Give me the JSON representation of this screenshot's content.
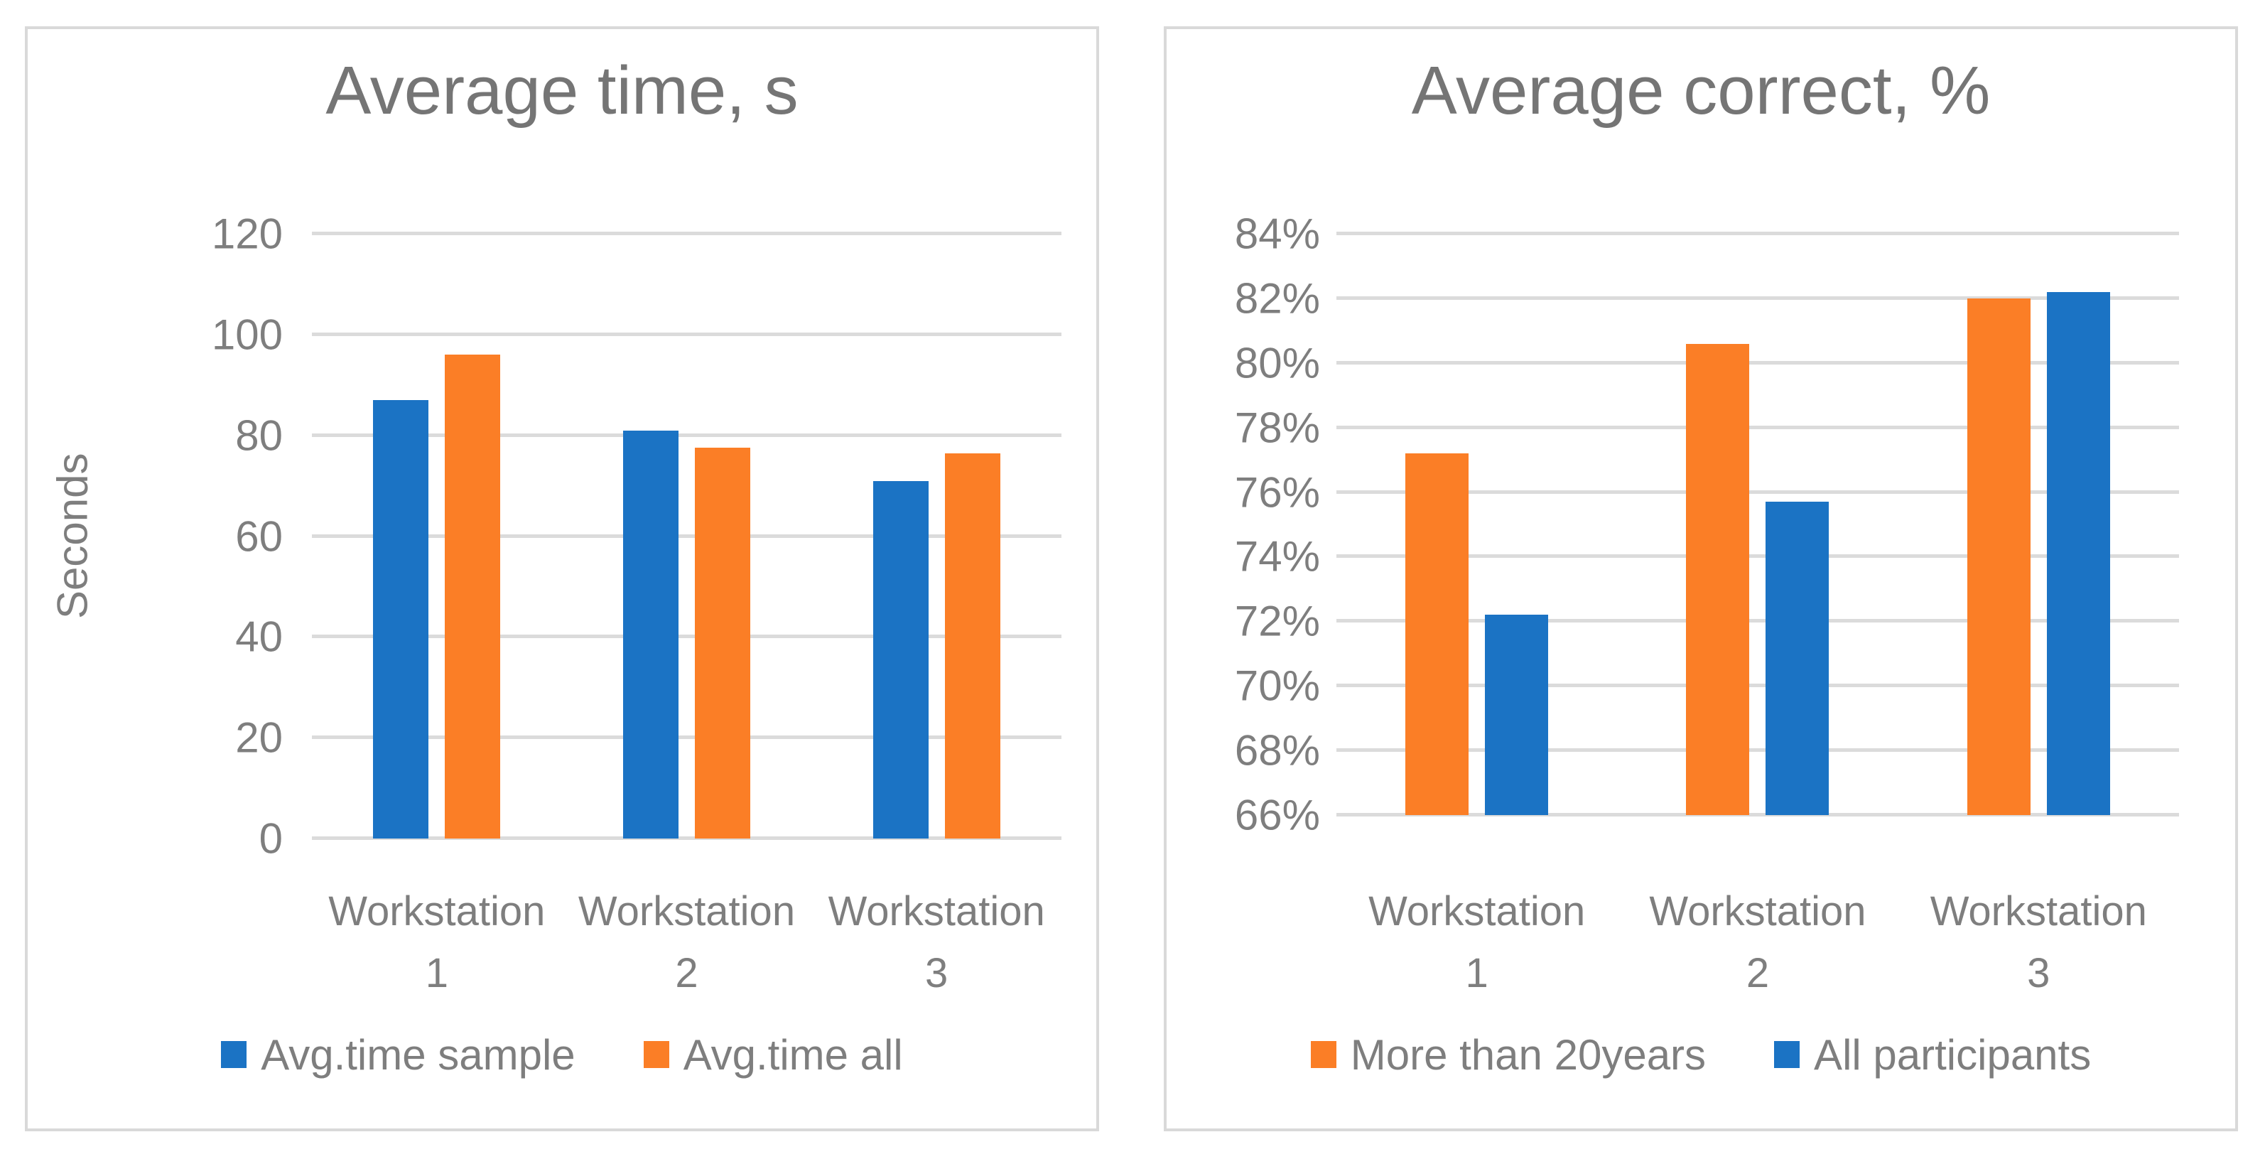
{
  "colors": {
    "series_blue": "#1b73c4",
    "series_orange": "#fb7e26",
    "gridline": "#dbdbdb",
    "panel_border": "#d9d9d9",
    "text_gray": "#7e7e7e"
  },
  "chart_data": [
    {
      "type": "bar",
      "title": "Average time, s",
      "y_axis_title": "Seconds",
      "categories": [
        "Workstation 1",
        "Workstation 2",
        "Workstation 3"
      ],
      "ylim": [
        0,
        120
      ],
      "grid": true,
      "legend_position": "bottom",
      "ticks": [
        {
          "value": 0,
          "label": "0"
        },
        {
          "value": 20,
          "label": "20"
        },
        {
          "value": 40,
          "label": "40"
        },
        {
          "value": 60,
          "label": "60"
        },
        {
          "value": 80,
          "label": "80"
        },
        {
          "value": 100,
          "label": "100"
        },
        {
          "value": 120,
          "label": "120"
        }
      ],
      "series": [
        {
          "name": "Avg.time sample",
          "color": "#1b73c4",
          "values": [
            87,
            81,
            71
          ]
        },
        {
          "name": "Avg.time all",
          "color": "#fb7e26",
          "values": [
            96,
            77.6,
            76.4
          ]
        }
      ]
    },
    {
      "type": "bar",
      "title": "Average correct, %",
      "categories": [
        "Workstation 1",
        "Workstation 2",
        "Workstation 3"
      ],
      "ylim": [
        66,
        84
      ],
      "grid": true,
      "legend_position": "bottom",
      "ticks": [
        {
          "value": 66,
          "label": "66%"
        },
        {
          "value": 68,
          "label": "68%"
        },
        {
          "value": 70,
          "label": "70%"
        },
        {
          "value": 72,
          "label": "72%"
        },
        {
          "value": 74,
          "label": "74%"
        },
        {
          "value": 76,
          "label": "76%"
        },
        {
          "value": 78,
          "label": "78%"
        },
        {
          "value": 80,
          "label": "80%"
        },
        {
          "value": 82,
          "label": "82%"
        },
        {
          "value": 84,
          "label": "84%"
        }
      ],
      "series": [
        {
          "name": "More than 20years",
          "color": "#fb7e26",
          "values": [
            77.2,
            80.6,
            82
          ]
        },
        {
          "name": "All participants",
          "color": "#1b73c4",
          "values": [
            72.2,
            75.7,
            82.2
          ]
        }
      ]
    }
  ]
}
